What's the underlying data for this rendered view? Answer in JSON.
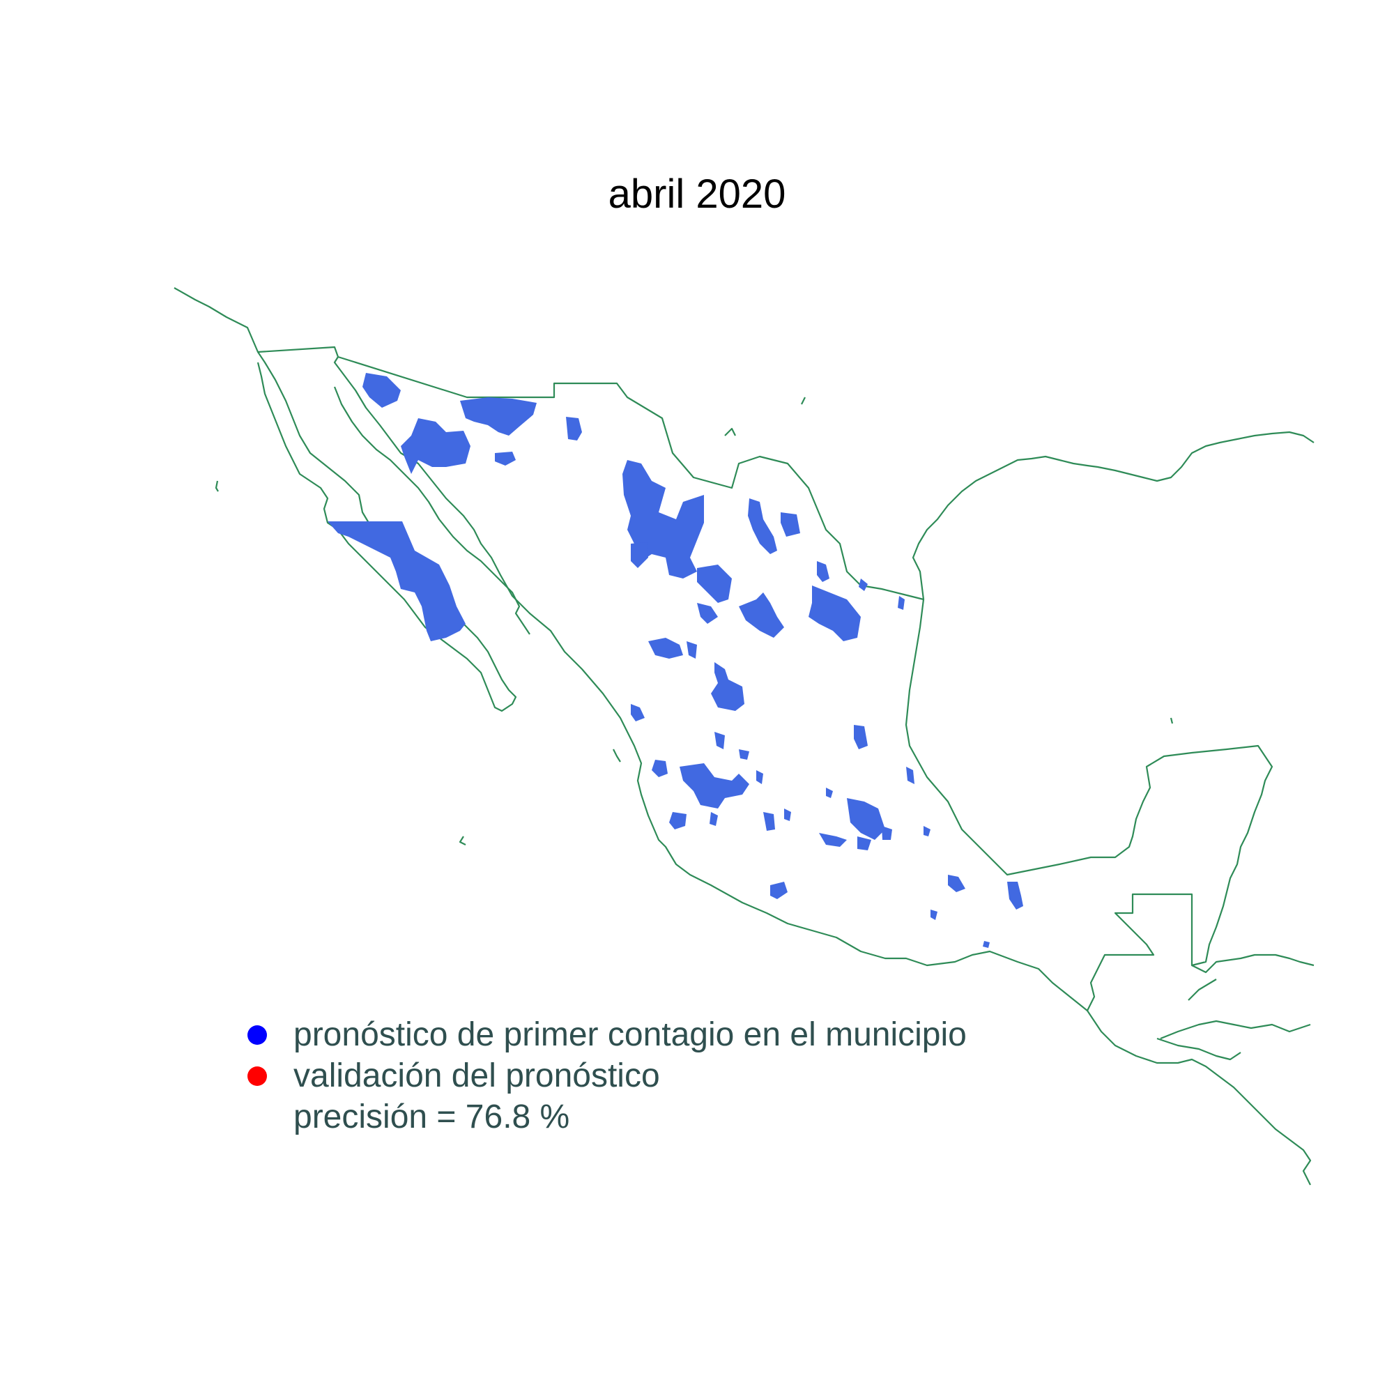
{
  "title": "abril 2020",
  "legend": {
    "items": [
      {
        "label": "pronóstico de primer contagio en el municipio",
        "color": "#0000ff"
      },
      {
        "label": "validación del pronóstico",
        "color": "#ff0000"
      }
    ],
    "note": "precisión = 76.8 %"
  },
  "colors": {
    "boundary": "#2e8b57",
    "forecast_fill": "#4169e1",
    "text": "#2f4f4f"
  }
}
